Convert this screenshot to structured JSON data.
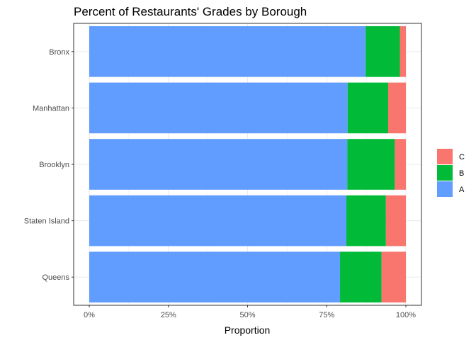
{
  "chart_data": {
    "type": "bar",
    "orientation": "horizontal",
    "stacked": true,
    "title": "Percent of Restaurants' Grades by Borough",
    "xlabel": "Proportion",
    "ylabel": "",
    "xlim": [
      0,
      1
    ],
    "x_ticks": [
      0,
      0.25,
      0.5,
      0.75,
      1
    ],
    "x_tick_labels": [
      "0%",
      "25%",
      "50%",
      "75%",
      "100%"
    ],
    "grid": true,
    "legend_position": "right",
    "categories": [
      "Bronx",
      "Manhattan",
      "Brooklyn",
      "Staten Island",
      "Queens"
    ],
    "series": [
      {
        "name": "A",
        "color": "#619CFF",
        "values": [
          0.873,
          0.816,
          0.815,
          0.812,
          0.792
        ]
      },
      {
        "name": "B",
        "color": "#00BA38",
        "values": [
          0.108,
          0.128,
          0.15,
          0.125,
          0.131
        ]
      },
      {
        "name": "C",
        "color": "#F8766D",
        "values": [
          0.019,
          0.056,
          0.035,
          0.063,
          0.077
        ]
      }
    ],
    "legend_order": [
      "C",
      "B",
      "A"
    ]
  }
}
